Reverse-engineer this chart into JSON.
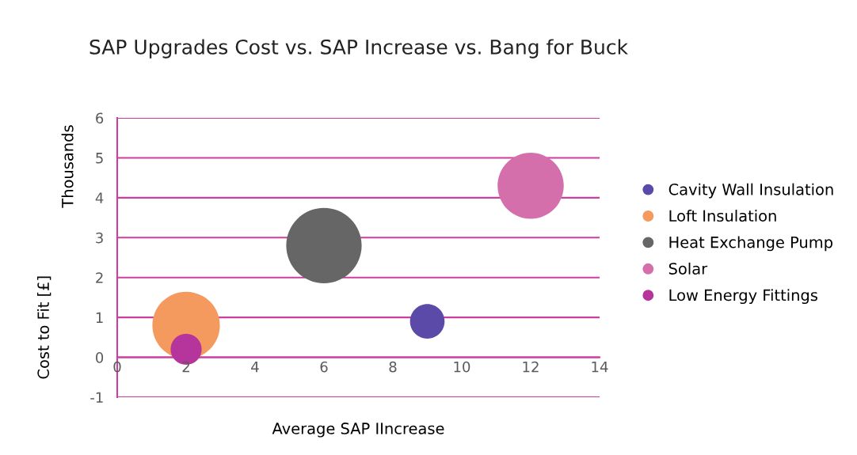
{
  "chart_data": {
    "type": "bubble",
    "title": "SAP Upgrades Cost vs. SAP Increase vs. Bang for Buck",
    "xlabel": "Average SAP IIncrease",
    "ylabel": "Cost to Fit [£]",
    "annotations": [
      "Thousands"
    ],
    "xlim": [
      0,
      14
    ],
    "xticks": [
      0,
      2,
      4,
      6,
      8,
      10,
      12,
      14
    ],
    "ylim": [
      -1,
      6
    ],
    "yticks": [
      -1,
      0,
      1,
      2,
      3,
      4,
      5,
      6
    ],
    "grid": "y",
    "legend": "right",
    "series": [
      {
        "name": "Cavity Wall Insulation",
        "color": "#5b4aa8",
        "x": [
          9
        ],
        "values": [
          0.9
        ],
        "sizes": [
          0.21
        ]
      },
      {
        "name": "Loft Insulation",
        "color": "#f59a5e",
        "x": [
          2
        ],
        "values": [
          0.8
        ],
        "sizes": [
          0.8
        ]
      },
      {
        "name": "Heat Exchange Pump",
        "color": "#666666",
        "x": [
          6
        ],
        "values": [
          2.8
        ],
        "sizes": [
          1
        ]
      },
      {
        "name": "Solar",
        "color": "#d56fac",
        "x": [
          12
        ],
        "values": [
          4.3
        ],
        "sizes": [
          0.77
        ]
      },
      {
        "name": "Low Energy Fittings",
        "color": "#b5359c",
        "x": [
          2
        ],
        "values": [
          0.2
        ],
        "sizes": [
          0.17
        ]
      }
    ]
  }
}
